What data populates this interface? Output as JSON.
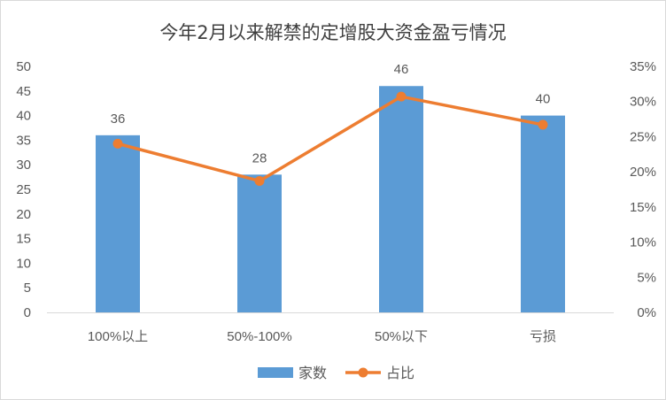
{
  "chart_data": {
    "type": "bar",
    "title": "今年2月以来解禁的定增股大资金盈亏情况",
    "categories": [
      "100%以上",
      "50%-100%",
      "50%以下",
      "亏损"
    ],
    "series": [
      {
        "name": "家数",
        "kind": "bar",
        "axis": "left",
        "values": [
          36,
          28,
          46,
          40
        ],
        "color": "#5b9bd5",
        "data_labels": [
          "36",
          "28",
          "46",
          "40"
        ]
      },
      {
        "name": "占比",
        "kind": "line",
        "axis": "right",
        "values": [
          0.24,
          0.187,
          0.307,
          0.267
        ],
        "color": "#ed7d31"
      }
    ],
    "y_left": {
      "min": 0,
      "max": 50,
      "step": 5,
      "ticks": [
        "0",
        "5",
        "10",
        "15",
        "20",
        "25",
        "30",
        "35",
        "40",
        "45",
        "50"
      ]
    },
    "y_right": {
      "min": 0,
      "max": 0.35,
      "step": 0.05,
      "ticks": [
        "0%",
        "5%",
        "10%",
        "15%",
        "20%",
        "25%",
        "30%",
        "35%"
      ]
    },
    "grid": false,
    "legend": "bottom"
  }
}
